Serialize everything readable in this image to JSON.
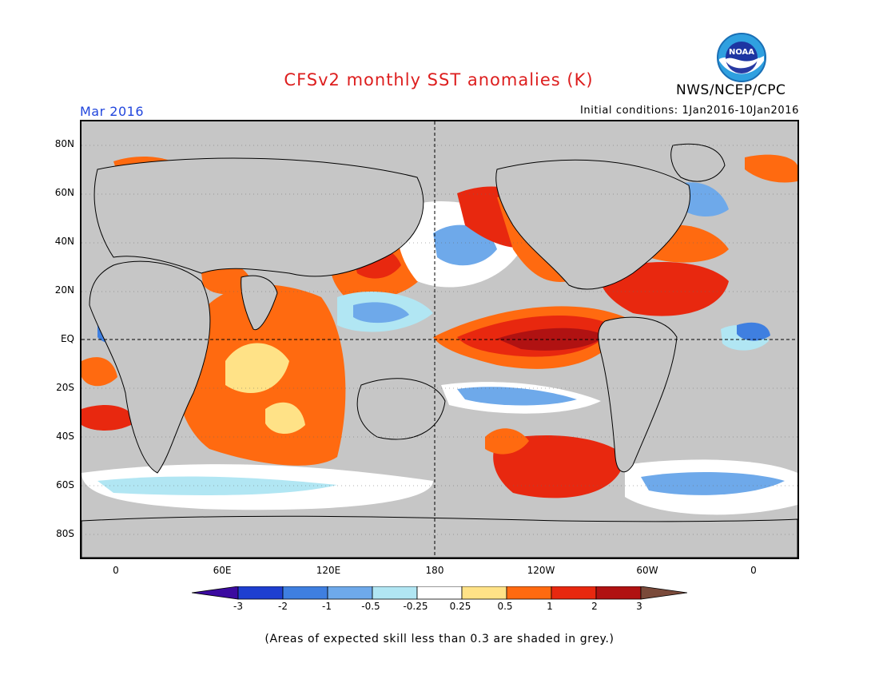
{
  "header": {
    "title": "CFSv2 monthly SST anomalies (K)",
    "agency": "NWS/NCEP/CPC",
    "month": "Mar 2016",
    "initial_conditions": "Initial conditions: 1Jan2016-10Jan2016",
    "logo_text": "NOAA"
  },
  "axes": {
    "y_labels": [
      "80N",
      "60N",
      "40N",
      "20N",
      "EQ",
      "20S",
      "40S",
      "60S",
      "80S"
    ],
    "x_labels": [
      "0",
      "60E",
      "120E",
      "180",
      "120W",
      "60W",
      "0"
    ]
  },
  "colorbar": {
    "tick_labels": [
      "-3",
      "-2",
      "-1",
      "-0.5",
      "-0.25",
      "0.25",
      "0.5",
      "1",
      "2",
      "3"
    ],
    "colors": [
      "#1e3fd0",
      "#3f7fe0",
      "#6ea9ea",
      "#b1e6f3",
      "#ffffff",
      "#ffe287",
      "#ff6a10",
      "#e8280f",
      "#b01212"
    ],
    "under_color": "#3b0aa0",
    "over_color": "#7a4a3a",
    "grey_color": "#c6c6c6"
  },
  "footnote": "(Areas of expected skill less than 0.3 are shaded in grey.)",
  "colors": {
    "title": "#dd1e1e",
    "month": "#2146dd"
  }
}
